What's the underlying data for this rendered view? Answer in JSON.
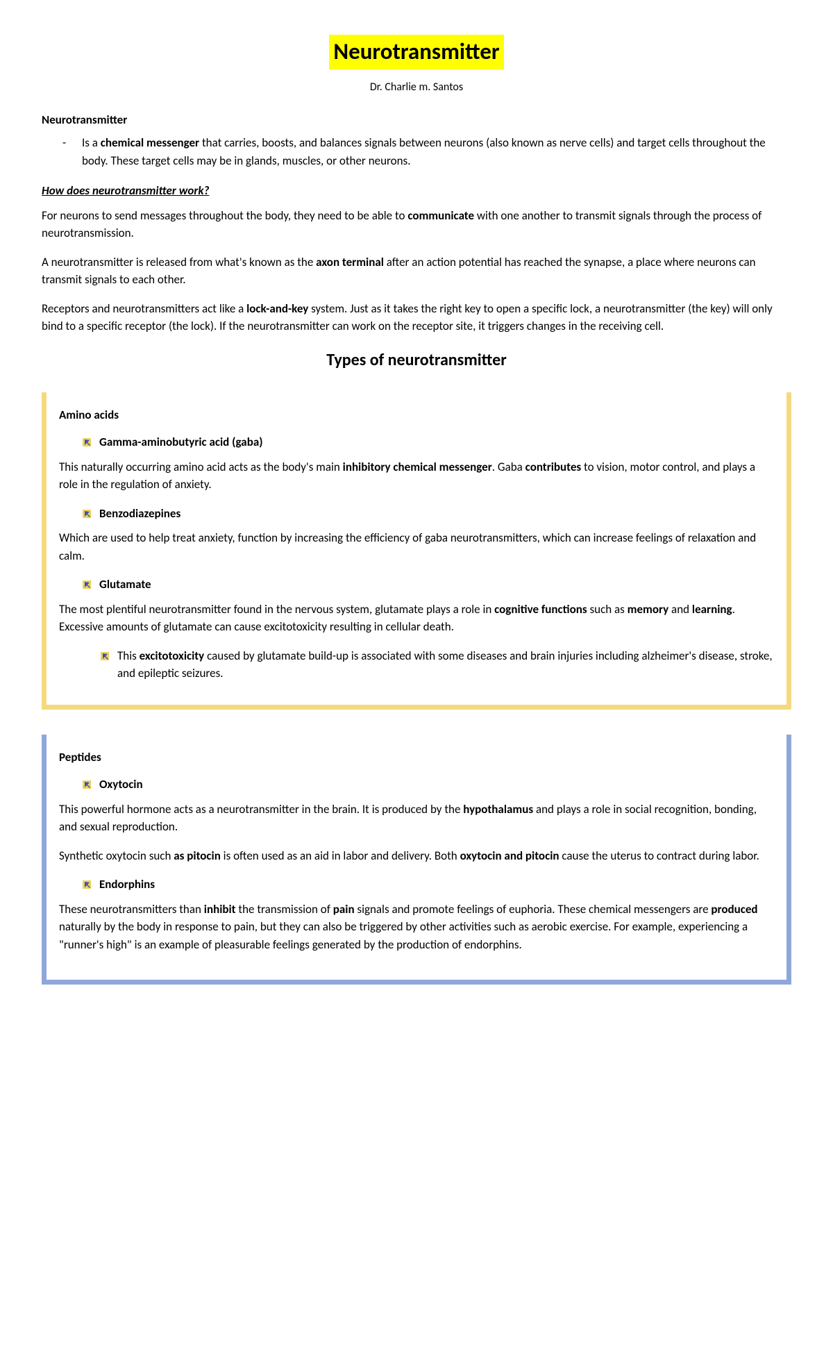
{
  "title": "Neurotransmitter",
  "author": "Dr. Charlie m. Santos",
  "intro": {
    "label": "Neurotransmitter",
    "definition_html": "Is a <b>chemical messenger</b> that carries, boosts, and balances signals between neurons (also known as nerve cells) and target cells throughout the body. These target cells may be in glands, muscles, or other neurons."
  },
  "how_heading": "How does neurotransmitter work?",
  "how_paragraphs": [
    "For neurons to send messages throughout the body, they need to be able to <b>communicate</b> with one another to transmit signals through the process of neurotransmission.",
    "A neurotransmitter is released from what's known as the <b>axon terminal</b> after an action potential has reached the synapse, a place where neurons can transmit signals to each other.",
    "Receptors and neurotransmitters act like a <b>lock-and-key</b> system. Just as it takes the right key to open a specific lock, a neurotransmitter (the key) will only bind to a specific receptor (the lock). If the neurotransmitter can work on the receptor site, it triggers changes in the receiving cell."
  ],
  "types_heading": "Types of neurotransmitter",
  "amino_box": {
    "border_color": "#f5d97f",
    "label": "Amino acids",
    "items": [
      {
        "name": "Gamma-aminobutyric acid (gaba)",
        "desc": "This naturally occurring amino acid acts as the body's main <b>inhibitory chemical messenger</b>. Gaba <b>contributes</b> to vision, motor control, and plays a role in the regulation of anxiety."
      },
      {
        "name": "Benzodiazepines",
        "desc": "Which are used to help treat anxiety, function by increasing the efficiency of gaba neurotransmitters, which can increase feelings of relaxation and calm."
      },
      {
        "name": "Glutamate",
        "desc": "The most plentiful neurotransmitter found in the nervous system, glutamate plays a role in <b>cognitive functions</b> such as <b>memory</b> and <b>learning</b>. Excessive amounts of glutamate can cause excitotoxicity resulting in cellular death.",
        "sub": "This <b>excitotoxicity</b> caused by glutamate build-up is associated with some diseases and brain injuries including alzheimer's disease, stroke, and epileptic seizures."
      }
    ]
  },
  "peptide_box": {
    "border_color": "#8ea7db",
    "label": "Peptides",
    "items": [
      {
        "name": "Oxytocin",
        "desc": "This powerful hormone acts as a neurotransmitter in the brain. It is produced by the <b>hypothalamus</b> and plays a role in social recognition, bonding, and sexual reproduction.",
        "desc2": "Synthetic oxytocin such <b>as pitocin</b> is often used as an aid in labor and delivery. Both <b>oxytocin and pitocin</b> cause the uterus to contract during labor."
      },
      {
        "name": "Endorphins",
        "desc": "These neurotransmitters than <b>inhibit</b> the transmission of <b>pain</b> signals and promote feelings of euphoria. These chemical messengers are <b>produced</b> naturally by the body in response to pain, but they can also be triggered by other activities such as aerobic exercise. For example, experiencing a \"runner's high\" is an example of pleasurable feelings generated by the production of endorphins."
      }
    ]
  }
}
